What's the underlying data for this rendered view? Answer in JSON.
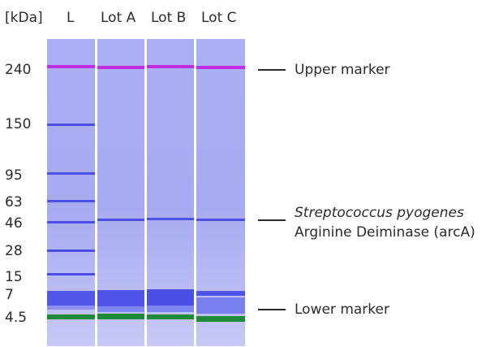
{
  "units_label": "[kDa]",
  "lanes": [
    "L",
    "Lot A",
    "Lot B",
    "Lot C"
  ],
  "mw_ladder": [
    "240",
    "150",
    "95",
    "63",
    "46",
    "28",
    "15",
    "7",
    "4.5"
  ],
  "annotations": {
    "upper": "Upper marker",
    "protein_species": "Streptococcus pyogenes",
    "protein_name": "Arginine Deiminase (arcA)",
    "lower": "Lower marker"
  },
  "colors": {
    "gel_background": "#a9adf1",
    "band": "#4a4fe6",
    "upper_marker": "#c02ce0",
    "lower_marker": "#1f8a3a"
  }
}
